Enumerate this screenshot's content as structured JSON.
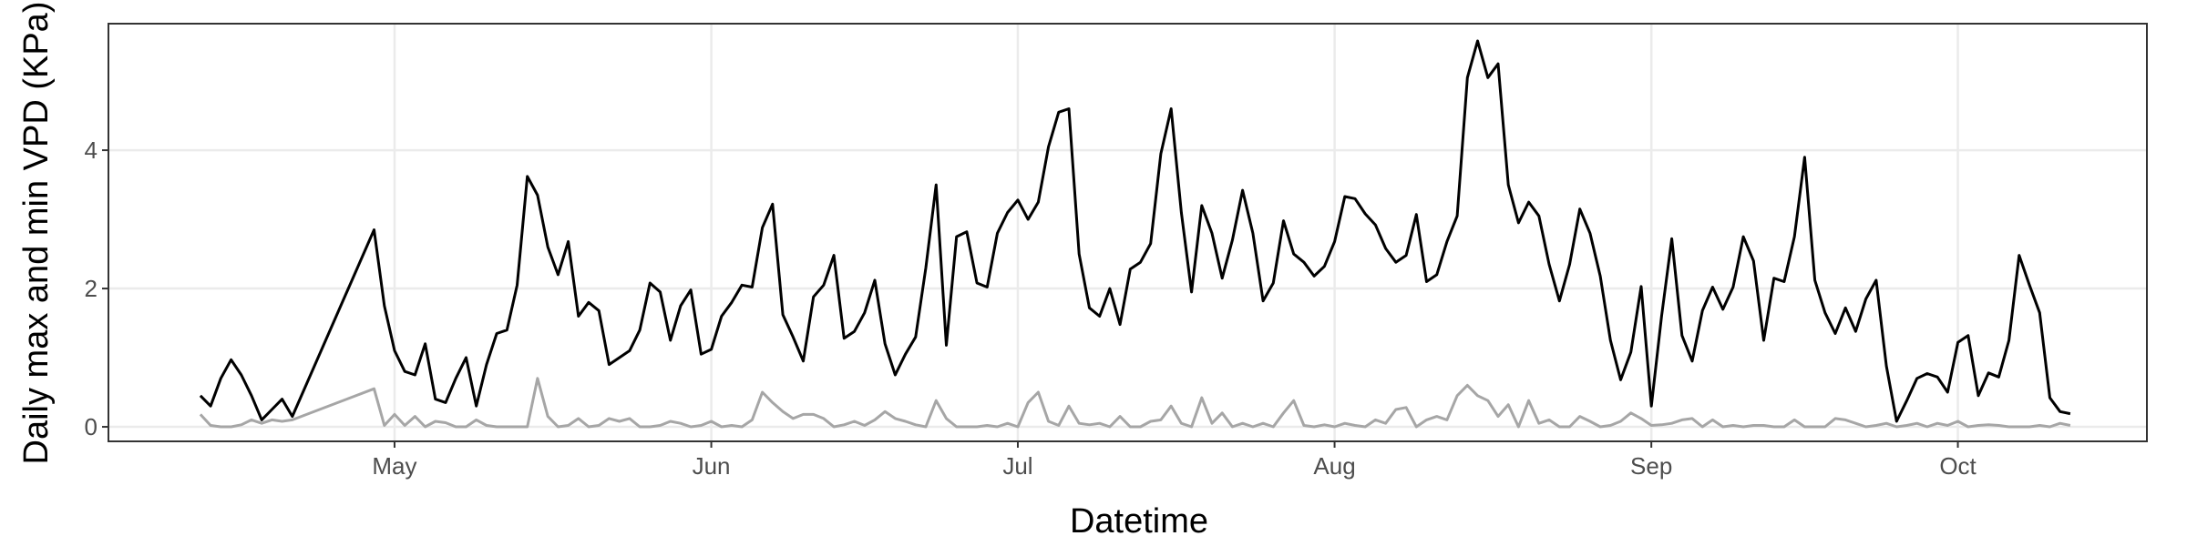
{
  "chart_data": {
    "type": "line",
    "x_label": "Datetime",
    "y_label": "Daily max and min VPD (KPa)",
    "xlim": [
      93,
      292.5
    ],
    "xticks": [
      {
        "value": 121,
        "label": "May"
      },
      {
        "value": 152,
        "label": "Jun"
      },
      {
        "value": 182,
        "label": "Jul"
      },
      {
        "value": 213,
        "label": "Aug"
      },
      {
        "value": 244,
        "label": "Sep"
      },
      {
        "value": 274,
        "label": "Oct"
      }
    ],
    "ylim": [
      -0.21,
      5.83
    ],
    "yticks": [
      0,
      2,
      4
    ],
    "grid": true,
    "x": [
      102,
      103,
      104,
      105,
      106,
      107,
      108,
      109,
      110,
      111,
      119,
      120,
      121,
      122,
      123,
      124,
      125,
      126,
      127,
      128,
      129,
      130,
      131,
      132,
      133,
      134,
      135,
      136,
      137,
      138,
      139,
      140,
      141,
      142,
      143,
      144,
      145,
      146,
      147,
      148,
      149,
      150,
      151,
      152,
      153,
      154,
      155,
      156,
      157,
      158,
      159,
      160,
      161,
      162,
      163,
      164,
      165,
      166,
      167,
      168,
      169,
      170,
      171,
      172,
      173,
      174,
      175,
      176,
      177,
      178,
      179,
      180,
      181,
      182,
      183,
      184,
      185,
      186,
      187,
      188,
      189,
      190,
      191,
      192,
      193,
      194,
      195,
      196,
      197,
      198,
      199,
      200,
      201,
      202,
      203,
      204,
      205,
      206,
      207,
      208,
      209,
      210,
      211,
      212,
      213,
      214,
      215,
      216,
      217,
      218,
      219,
      220,
      221,
      222,
      223,
      224,
      225,
      226,
      227,
      228,
      229,
      230,
      231,
      232,
      233,
      234,
      235,
      236,
      237,
      238,
      239,
      240,
      241,
      242,
      243,
      244,
      245,
      246,
      247,
      248,
      249,
      250,
      251,
      252,
      253,
      254,
      255,
      256,
      257,
      258,
      259,
      260,
      261,
      262,
      263,
      264,
      265,
      266,
      267,
      268,
      269,
      270,
      271,
      272,
      273,
      274,
      275,
      276,
      277,
      278,
      279,
      280,
      281,
      282,
      283,
      284,
      285
    ],
    "series": [
      {
        "color": "#000000",
        "values": [
          0.45,
          0.3,
          0.7,
          0.97,
          0.75,
          0.45,
          0.1,
          0.25,
          0.4,
          0.15,
          2.85,
          1.75,
          1.1,
          0.8,
          0.75,
          1.2,
          0.4,
          0.35,
          0.7,
          1.0,
          0.3,
          0.9,
          1.35,
          1.4,
          2.05,
          3.62,
          3.35,
          2.6,
          2.2,
          2.68,
          1.6,
          1.8,
          1.68,
          0.9,
          1.0,
          1.1,
          1.4,
          2.08,
          1.95,
          1.25,
          1.75,
          1.98,
          1.05,
          1.12,
          1.6,
          1.8,
          2.05,
          2.02,
          2.88,
          3.22,
          1.62,
          1.3,
          0.95,
          1.88,
          2.05,
          2.48,
          1.28,
          1.38,
          1.65,
          2.12,
          1.2,
          0.75,
          1.05,
          1.3,
          2.3,
          3.5,
          1.18,
          2.75,
          2.82,
          2.08,
          2.02,
          2.8,
          3.1,
          3.28,
          3.0,
          3.25,
          4.05,
          4.55,
          4.6,
          2.5,
          1.72,
          1.6,
          2.0,
          1.48,
          2.28,
          2.38,
          2.65,
          3.95,
          4.6,
          3.1,
          1.95,
          3.2,
          2.8,
          2.15,
          2.7,
          3.42,
          2.8,
          1.82,
          2.08,
          2.98,
          2.5,
          2.38,
          2.18,
          2.32,
          2.68,
          3.33,
          3.3,
          3.08,
          2.92,
          2.58,
          2.38,
          2.48,
          3.07,
          2.1,
          2.2,
          2.68,
          3.05,
          5.05,
          5.58,
          5.05,
          5.25,
          3.5,
          2.95,
          3.25,
          3.05,
          2.35,
          1.82,
          2.35,
          3.15,
          2.8,
          2.18,
          1.25,
          0.68,
          1.08,
          2.03,
          0.3,
          1.6,
          2.72,
          1.32,
          0.95,
          1.68,
          2.02,
          1.7,
          2.02,
          2.75,
          2.4,
          1.25,
          2.15,
          2.1,
          2.75,
          3.9,
          2.12,
          1.65,
          1.35,
          1.72,
          1.38,
          1.85,
          2.12,
          0.88,
          0.08,
          0.38,
          0.7,
          0.77,
          0.72,
          0.5,
          1.22,
          1.32,
          0.45,
          0.78,
          0.72,
          1.25,
          2.48,
          2.05,
          1.65,
          0.42,
          0.22,
          0.19
        ]
      },
      {
        "color": "#a6a6a6",
        "values": [
          0.18,
          0.02,
          0.0,
          0.0,
          0.03,
          0.1,
          0.05,
          0.1,
          0.08,
          0.1,
          0.55,
          0.02,
          0.18,
          0.02,
          0.15,
          0.0,
          0.08,
          0.06,
          0.0,
          0.0,
          0.1,
          0.02,
          0.0,
          0.0,
          0.0,
          0.0,
          0.7,
          0.15,
          0.0,
          0.02,
          0.12,
          0.0,
          0.02,
          0.12,
          0.08,
          0.12,
          0.0,
          0.0,
          0.02,
          0.08,
          0.05,
          0.0,
          0.02,
          0.08,
          0.0,
          0.02,
          0.0,
          0.1,
          0.5,
          0.35,
          0.22,
          0.12,
          0.18,
          0.18,
          0.12,
          0.0,
          0.03,
          0.08,
          0.02,
          0.1,
          0.22,
          0.12,
          0.08,
          0.03,
          0.0,
          0.38,
          0.12,
          0.0,
          0.0,
          0.0,
          0.02,
          0.0,
          0.05,
          0.0,
          0.35,
          0.5,
          0.08,
          0.02,
          0.3,
          0.05,
          0.03,
          0.05,
          0.0,
          0.15,
          0.0,
          0.0,
          0.08,
          0.1,
          0.3,
          0.05,
          0.0,
          0.42,
          0.05,
          0.2,
          0.0,
          0.05,
          0.0,
          0.05,
          0.0,
          0.2,
          0.38,
          0.02,
          0.0,
          0.03,
          0.0,
          0.05,
          0.02,
          0.0,
          0.1,
          0.05,
          0.25,
          0.28,
          0.0,
          0.1,
          0.15,
          0.1,
          0.45,
          0.6,
          0.45,
          0.38,
          0.15,
          0.32,
          0.0,
          0.38,
          0.05,
          0.1,
          0.0,
          0.0,
          0.15,
          0.08,
          0.0,
          0.02,
          0.08,
          0.2,
          0.12,
          0.02,
          0.03,
          0.05,
          0.1,
          0.12,
          0.0,
          0.1,
          0.0,
          0.02,
          0.0,
          0.02,
          0.02,
          0.0,
          0.0,
          0.1,
          0.0,
          0.0,
          0.0,
          0.12,
          0.1,
          0.05,
          0.0,
          0.02,
          0.05,
          0.0,
          0.02,
          0.05,
          0.0,
          0.05,
          0.02,
          0.08,
          0.0,
          0.02,
          0.03,
          0.02,
          0.0,
          0.0,
          0.0,
          0.02,
          0.0,
          0.05,
          0.02
        ]
      }
    ]
  }
}
